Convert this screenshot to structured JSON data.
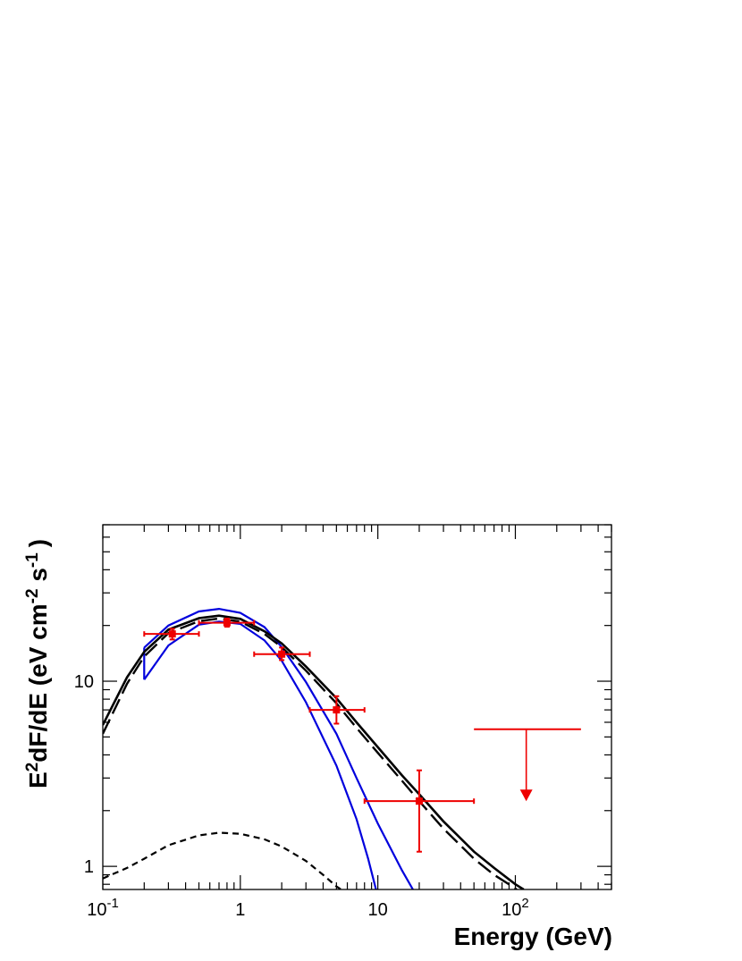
{
  "chart_data": {
    "type": "scatter",
    "title": "",
    "xlabel": "Energy (GeV)",
    "ylabel": "E^{2}dF/dE (eV cm^{-2} s^{-1})",
    "ylabel_parts": {
      "main1": "E",
      "sup1": "2",
      "main2": "dF/dE (eV cm",
      "sup2": "-2",
      "main3": " s",
      "sup3": "-1",
      "main4": ")"
    },
    "xscale": "log",
    "yscale": "log",
    "xlim": [
      0.1,
      500
    ],
    "ylim": [
      0.75,
      70
    ],
    "x_tick_labels": [
      {
        "value": 0.1,
        "base": "10",
        "exp": "-1"
      },
      {
        "value": 1,
        "base": "1",
        "exp": ""
      },
      {
        "value": 10,
        "base": "10",
        "exp": ""
      },
      {
        "value": 100,
        "base": "10",
        "exp": "2"
      }
    ],
    "y_tick_labels": [
      {
        "value": 1,
        "label": "1"
      },
      {
        "value": 10,
        "label": "10"
      }
    ],
    "grid": false,
    "legend": "none",
    "colors": {
      "data": "#ee0000",
      "model": "#000000",
      "band": "#0000dd"
    },
    "points": [
      {
        "x": 0.32,
        "xlo": 0.2,
        "xhi": 0.5,
        "y": 18.0,
        "ylo": 16.8,
        "yhi": 19.2
      },
      {
        "x": 0.8,
        "xlo": 0.5,
        "xhi": 1.26,
        "y": 20.7,
        "ylo": 19.7,
        "yhi": 21.8
      },
      {
        "x": 2.0,
        "xlo": 1.26,
        "xhi": 3.2,
        "y": 14.0,
        "ylo": 13.0,
        "yhi": 15.2
      },
      {
        "x": 5.0,
        "xlo": 3.2,
        "xhi": 8.0,
        "y": 7.0,
        "ylo": 5.9,
        "yhi": 8.3
      },
      {
        "x": 20.0,
        "xlo": 8.0,
        "xhi": 50.0,
        "y": 2.25,
        "ylo": 1.2,
        "yhi": 3.3
      }
    ],
    "upper_limits": [
      {
        "x": 120,
        "xlo": 50,
        "xhi": 300,
        "y": 5.5,
        "arrow_to": 2.3
      }
    ],
    "curves": [
      {
        "style": "solid",
        "color": "#000000",
        "points": [
          [
            0.1,
            5.8
          ],
          [
            0.15,
            10.5
          ],
          [
            0.2,
            14.4
          ],
          [
            0.3,
            19.0
          ],
          [
            0.5,
            21.9
          ],
          [
            0.7,
            22.6
          ],
          [
            1.0,
            21.7
          ],
          [
            1.5,
            18.6
          ],
          [
            2.0,
            16.0
          ],
          [
            3.0,
            12.0
          ],
          [
            5.0,
            8.1
          ],
          [
            7.0,
            6.0
          ],
          [
            10.0,
            4.4
          ],
          [
            15.0,
            3.1
          ],
          [
            20.0,
            2.45
          ],
          [
            30.0,
            1.75
          ],
          [
            50.0,
            1.2
          ],
          [
            70.0,
            0.98
          ],
          [
            100.0,
            0.8
          ],
          [
            115.0,
            0.75
          ]
        ]
      },
      {
        "style": "long-dash",
        "color": "#000000",
        "points": [
          [
            0.1,
            5.2
          ],
          [
            0.15,
            9.7
          ],
          [
            0.2,
            13.6
          ],
          [
            0.3,
            18.2
          ],
          [
            0.5,
            21.1
          ],
          [
            0.7,
            21.8
          ],
          [
            1.0,
            21.0
          ],
          [
            1.5,
            18.0
          ],
          [
            2.0,
            15.3
          ],
          [
            3.0,
            11.4
          ],
          [
            5.0,
            7.6
          ],
          [
            7.0,
            5.6
          ],
          [
            10.0,
            4.1
          ],
          [
            15.0,
            2.9
          ],
          [
            20.0,
            2.25
          ],
          [
            30.0,
            1.6
          ],
          [
            50.0,
            1.1
          ],
          [
            70.0,
            0.9
          ],
          [
            100.0,
            0.76
          ],
          [
            102.0,
            0.75
          ]
        ]
      },
      {
        "style": "short-dash",
        "color": "#000000",
        "points": [
          [
            0.1,
            0.86
          ],
          [
            0.15,
            0.98
          ],
          [
            0.2,
            1.1
          ],
          [
            0.3,
            1.3
          ],
          [
            0.5,
            1.47
          ],
          [
            0.7,
            1.52
          ],
          [
            1.0,
            1.5
          ],
          [
            1.5,
            1.4
          ],
          [
            2.0,
            1.28
          ],
          [
            3.0,
            1.07
          ],
          [
            4.0,
            0.9
          ],
          [
            5.0,
            0.78
          ],
          [
            5.4,
            0.75
          ]
        ]
      }
    ],
    "band": {
      "color": "#0000dd",
      "upper": [
        [
          0.2,
          15.2
        ],
        [
          0.3,
          20.0
        ],
        [
          0.5,
          23.8
        ],
        [
          0.7,
          24.6
        ],
        [
          1.0,
          23.4
        ],
        [
          1.5,
          19.6
        ],
        [
          2.0,
          15.3
        ],
        [
          3.0,
          9.9
        ],
        [
          5.0,
          5.2
        ],
        [
          7.0,
          3.0
        ],
        [
          10.0,
          1.7
        ],
        [
          15.0,
          0.95
        ],
        [
          18.0,
          0.75
        ]
      ],
      "lower": [
        [
          0.2,
          10.2
        ],
        [
          0.3,
          15.6
        ],
        [
          0.5,
          20.2
        ],
        [
          0.7,
          21.0
        ],
        [
          1.0,
          20.4
        ],
        [
          1.5,
          16.6
        ],
        [
          2.0,
          12.9
        ],
        [
          3.0,
          7.7
        ],
        [
          5.0,
          3.5
        ],
        [
          7.0,
          1.8
        ],
        [
          8.5,
          1.1
        ],
        [
          9.7,
          0.75
        ]
      ]
    }
  }
}
